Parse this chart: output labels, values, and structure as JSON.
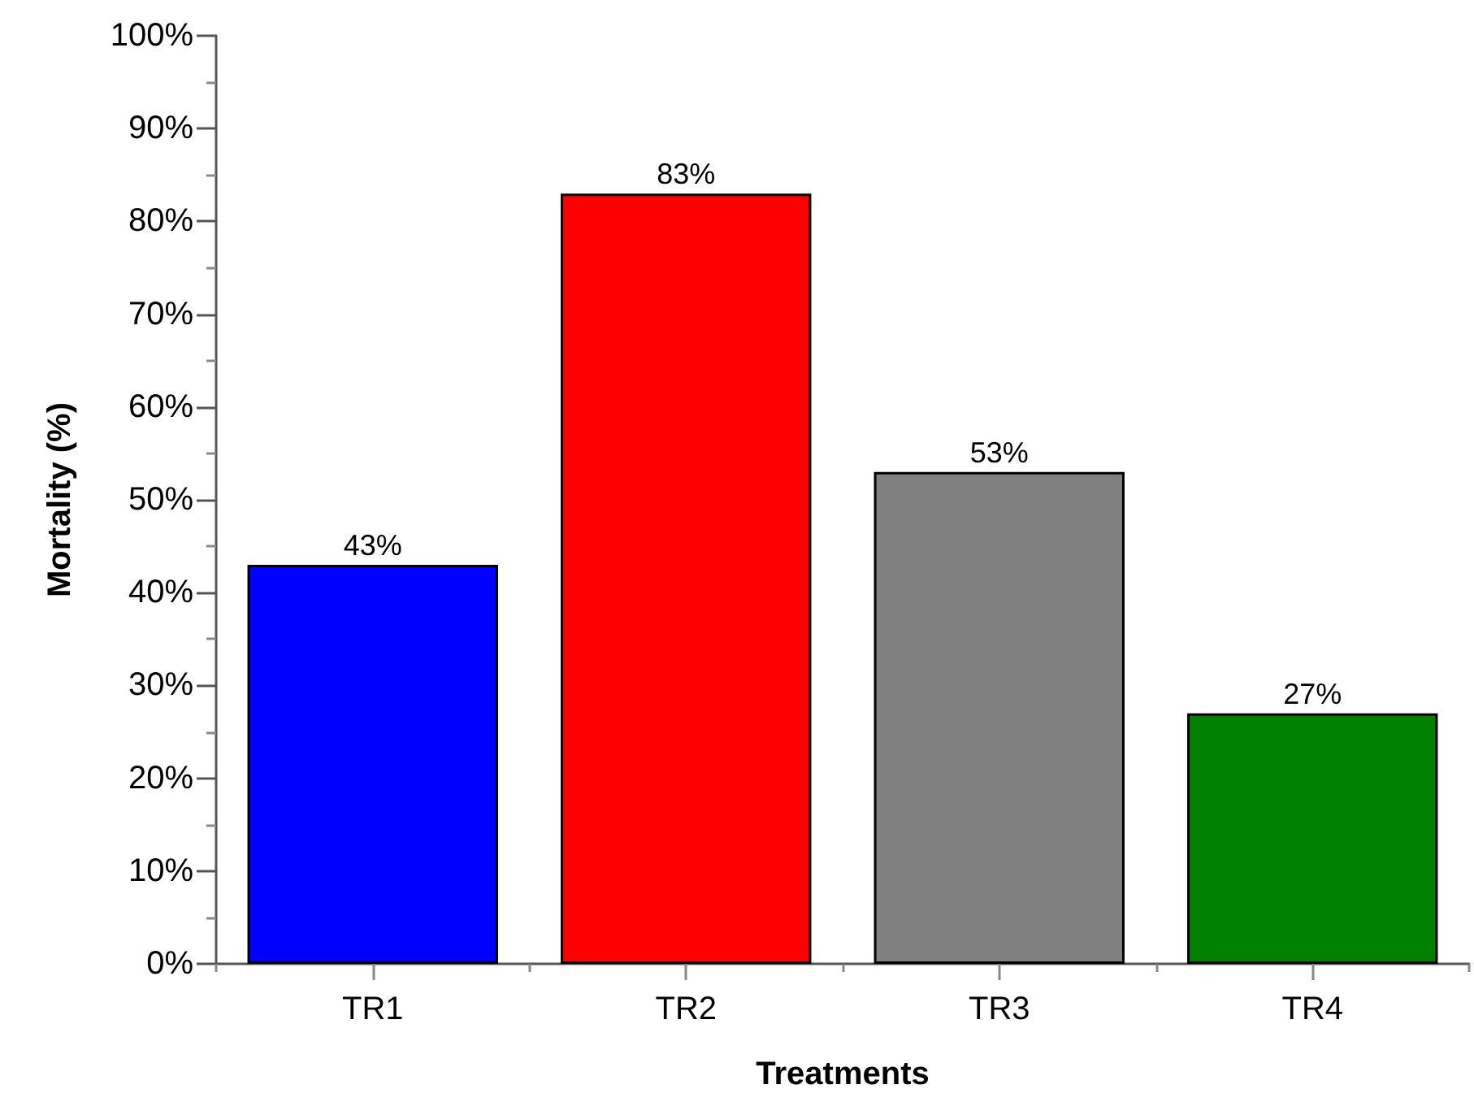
{
  "chart_data": {
    "type": "bar",
    "xlabel": "Treatments",
    "ylabel": "Mortality (%)",
    "categories": [
      "TR1",
      "TR2",
      "TR3",
      "TR4"
    ],
    "values": [
      43,
      83,
      53,
      27
    ],
    "colors": [
      "#0000ff",
      "#ff0000",
      "#808080",
      "#008000"
    ],
    "value_labels": [
      "43%",
      "83%",
      "53%",
      "27%"
    ],
    "ylim": [
      0,
      100
    ],
    "yticks": [
      {
        "value": 0,
        "label": "0%"
      },
      {
        "value": 5,
        "label": null
      },
      {
        "value": 10,
        "label": "10%"
      },
      {
        "value": 15,
        "label": null
      },
      {
        "value": 20,
        "label": "20%"
      },
      {
        "value": 25,
        "label": null
      },
      {
        "value": 30,
        "label": "30%"
      },
      {
        "value": 35,
        "label": null
      },
      {
        "value": 40,
        "label": "40%"
      },
      {
        "value": 45,
        "label": null
      },
      {
        "value": 50,
        "label": "50%"
      },
      {
        "value": 55,
        "label": null
      },
      {
        "value": 60,
        "label": "60%"
      },
      {
        "value": 65,
        "label": null
      },
      {
        "value": 70,
        "label": "70%"
      },
      {
        "value": 75,
        "label": null
      },
      {
        "value": 80,
        "label": "80%"
      },
      {
        "value": 85,
        "label": null
      },
      {
        "value": 90,
        "label": "90%"
      },
      {
        "value": 95,
        "label": null
      },
      {
        "value": 100,
        "label": "100%"
      }
    ],
    "grid": false
  }
}
